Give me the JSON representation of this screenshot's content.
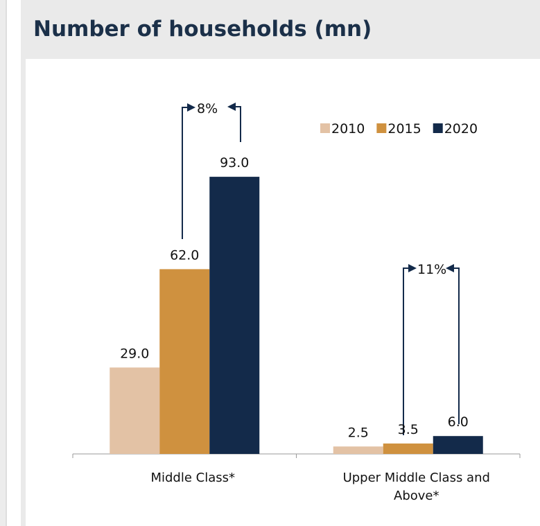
{
  "chart_data": {
    "type": "bar",
    "title": "Number of households (mn)",
    "categories": [
      "Middle Class*",
      "Upper Middle Class and Above*"
    ],
    "series": [
      {
        "name": "2010",
        "color": "#e3c2a5",
        "values": [
          29.0,
          2.5
        ],
        "value_labels": [
          "29.0",
          "2.5"
        ]
      },
      {
        "name": "2015",
        "color": "#cf913f",
        "values": [
          62.0,
          3.5
        ],
        "value_labels": [
          "62.0",
          "3.5"
        ]
      },
      {
        "name": "2020",
        "color": "#132a4a",
        "values": [
          93.0,
          6.0
        ],
        "value_labels": [
          "93.0",
          "6.0"
        ]
      }
    ],
    "annotations": [
      "8%",
      "11%"
    ],
    "ylim": [
      0,
      100
    ],
    "legend": "top-right"
  }
}
